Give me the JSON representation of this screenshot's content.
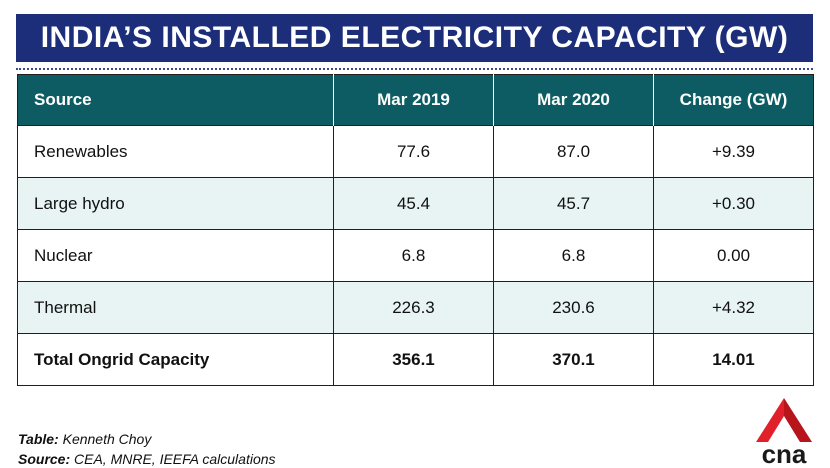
{
  "title": "INDIA’S INSTALLED ELECTRICITY CAPACITY (GW)",
  "colors": {
    "title_bg": "#1c2e7a",
    "header_bg": "#0d5c63",
    "shaded_row": "#e8f3f3",
    "logo_red": "#e0202a",
    "logo_text": "#1a1a1a"
  },
  "chart_data": {
    "type": "table",
    "columns": [
      "Source",
      "Mar 2019",
      "Mar 2020",
      "Change (GW)"
    ],
    "rows": [
      [
        "Renewables",
        "77.6",
        "87.0",
        "+9.39"
      ],
      [
        "Large hydro",
        "45.4",
        "45.7",
        "+0.30"
      ],
      [
        "Nuclear",
        "6.8",
        "6.8",
        "0.00"
      ],
      [
        "Thermal",
        "226.3",
        "230.6",
        "+4.32"
      ],
      [
        "Total Ongrid Capacity",
        "356.1",
        "370.1",
        "14.01"
      ]
    ]
  },
  "credits": {
    "table_label": "Table:",
    "table_value": "Kenneth Choy",
    "source_label": "Source:",
    "source_value": "CEA, MNRE, IEEFA calculations"
  },
  "logo": {
    "icon": "cna-logo-icon",
    "text": "cna"
  }
}
